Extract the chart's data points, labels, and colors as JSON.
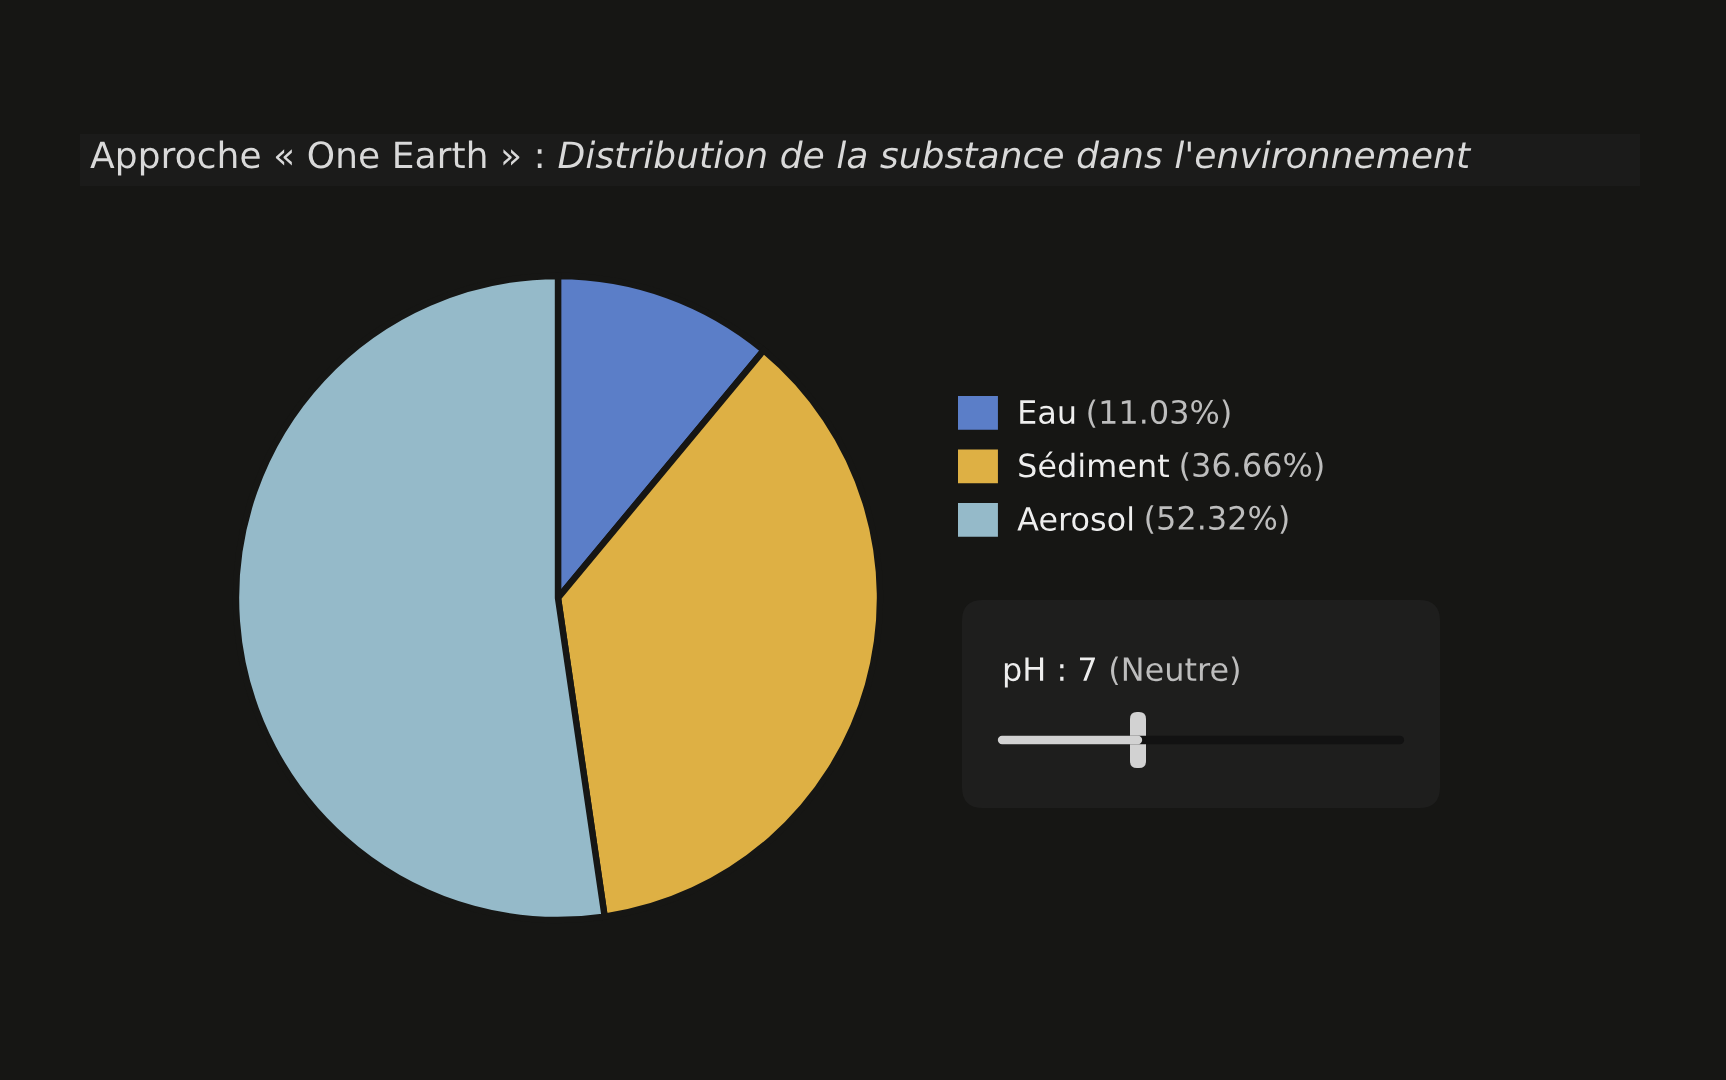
{
  "chart_data": {
    "type": "pie",
    "title": "Approche « One Earth » :",
    "subtitle": "Distribution de la substance dans l'environnement",
    "categories": [
      "Eau",
      "Sédiment",
      "Aerosol"
    ],
    "values": [
      11.03,
      36.66,
      52.32
    ],
    "colors": [
      "#5b7ec8",
      "#deb044",
      "#95bac9"
    ],
    "value_labels": [
      "(11.03%)",
      "(36.66%)",
      "(52.32%)"
    ],
    "legend": "right",
    "annotations": [
      "pH : 7",
      "(Neutre)"
    ]
  }
}
